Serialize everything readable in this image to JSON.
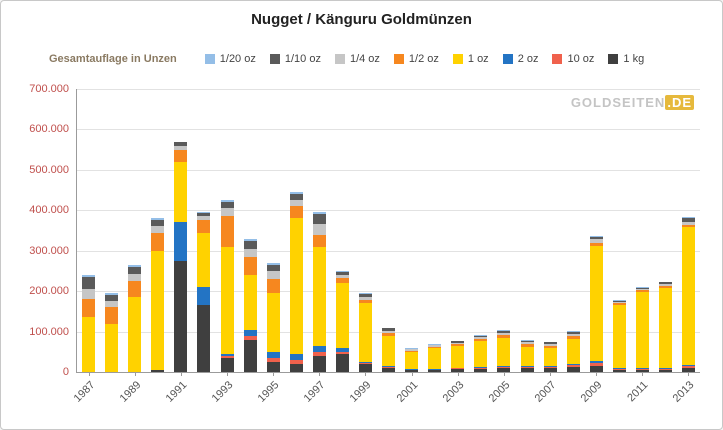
{
  "header": {
    "title": "Nugget / Känguru Goldmünzen",
    "subtitle": "Gesamtauflage in Unzen"
  },
  "watermark": "GOLDSEITEN.DE",
  "chart_data": {
    "type": "bar",
    "stacked": true,
    "title": "Nugget / Känguru Goldmünzen",
    "ylabel": "Gesamtauflage in Unzen",
    "xlabel": "",
    "ylim": [
      0,
      700000
    ],
    "ytick_step": 100000,
    "grid": true,
    "legend_position": "top",
    "yticks": [
      {
        "value": 700000,
        "label": "700.000"
      },
      {
        "value": 600000,
        "label": "600.000"
      },
      {
        "value": 500000,
        "label": "500.000"
      },
      {
        "value": 400000,
        "label": "400.000"
      },
      {
        "value": 300000,
        "label": "300.000"
      },
      {
        "value": 200000,
        "label": "200.000"
      },
      {
        "value": 100000,
        "label": "100.000"
      },
      {
        "value": 0,
        "label": "0"
      }
    ],
    "years": [
      1987,
      1988,
      1989,
      1990,
      1991,
      1992,
      1993,
      1994,
      1995,
      1996,
      1997,
      1998,
      1999,
      2000,
      2001,
      2002,
      2003,
      2004,
      2005,
      2006,
      2007,
      2008,
      2009,
      2010,
      2011,
      2012,
      2013
    ],
    "xtick_labels_shown": [
      "1987",
      "1989",
      "1991",
      "1993",
      "1995",
      "1997",
      "1999",
      "2001",
      "2003",
      "2005",
      "2007",
      "2009",
      "2011",
      "2013"
    ],
    "stack_order_bottom_to_top": [
      "1 kg",
      "10 oz",
      "2 oz",
      "1 oz",
      "1/2 oz",
      "1/4 oz",
      "1/10 oz",
      "1/20 oz"
    ],
    "series": [
      {
        "name": "1/20 oz",
        "color": "#94bee7",
        "values": [
          5000,
          5000,
          5000,
          5000,
          2000,
          2000,
          5000,
          5000,
          5000,
          5000,
          5000,
          2000,
          2000,
          2000,
          1000,
          1000,
          1000,
          2000,
          2000,
          2000,
          1000,
          2000,
          3000,
          1000,
          1000,
          2000,
          3000
        ]
      },
      {
        "name": "1/10 oz",
        "color": "#5a5a5a",
        "values": [
          30000,
          15000,
          17000,
          15000,
          8000,
          8000,
          15000,
          20000,
          15000,
          15000,
          25000,
          8000,
          7000,
          6000,
          2000,
          2000,
          3000,
          4000,
          5000,
          4000,
          4000,
          5000,
          6000,
          3000,
          3000,
          4000,
          8000
        ]
      },
      {
        "name": "1/4 oz",
        "color": "#c6c6c6",
        "values": [
          25000,
          15000,
          18000,
          15000,
          10000,
          10000,
          20000,
          20000,
          20000,
          15000,
          25000,
          8000,
          8000,
          6000,
          3000,
          3000,
          4000,
          5000,
          6000,
          5000,
          5000,
          6000,
          8000,
          4000,
          4000,
          5000,
          8000
        ]
      },
      {
        "name": "1/2 oz",
        "color": "#f6871f",
        "values": [
          45000,
          40000,
          40000,
          45000,
          30000,
          30000,
          75000,
          45000,
          35000,
          30000,
          30000,
          12000,
          8000,
          6000,
          4000,
          4000,
          5000,
          5000,
          6000,
          6000,
          5000,
          6000,
          8000,
          4000,
          4000,
          5000,
          6000
        ]
      },
      {
        "name": "1 oz",
        "color": "#ffd200",
        "values": [
          135000,
          120000,
          185000,
          295000,
          150000,
          135000,
          265000,
          135000,
          145000,
          335000,
          245000,
          160000,
          145000,
          76000,
          42000,
          52000,
          53000,
          64000,
          71000,
          48000,
          45000,
          62000,
          285000,
          156000,
          188000,
          198000,
          340000
        ]
      },
      {
        "name": "2 oz",
        "color": "#2374c4",
        "values": [
          0,
          0,
          0,
          0,
          95000,
          45000,
          5000,
          15000,
          15000,
          15000,
          15000,
          10000,
          2000,
          2000,
          1000,
          1000,
          1000,
          2000,
          2000,
          2000,
          2000,
          3000,
          4000,
          2000,
          2000,
          2000,
          3000
        ]
      },
      {
        "name": "10 oz",
        "color": "#f0614c",
        "values": [
          0,
          0,
          0,
          0,
          0,
          0,
          5000,
          10000,
          10000,
          10000,
          10000,
          5000,
          3000,
          2000,
          1000,
          1000,
          2000,
          2000,
          2000,
          3000,
          3000,
          5000,
          8000,
          3000,
          3000,
          3000,
          5000
        ]
      },
      {
        "name": "1 kg",
        "color": "#3f3f3f",
        "values": [
          0,
          0,
          0,
          5000,
          275000,
          165000,
          35000,
          80000,
          25000,
          20000,
          40000,
          45000,
          20000,
          10000,
          5000,
          5000,
          8000,
          8000,
          10000,
          10000,
          10000,
          12000,
          15000,
          5000,
          5000,
          5000,
          10000
        ]
      }
    ]
  }
}
